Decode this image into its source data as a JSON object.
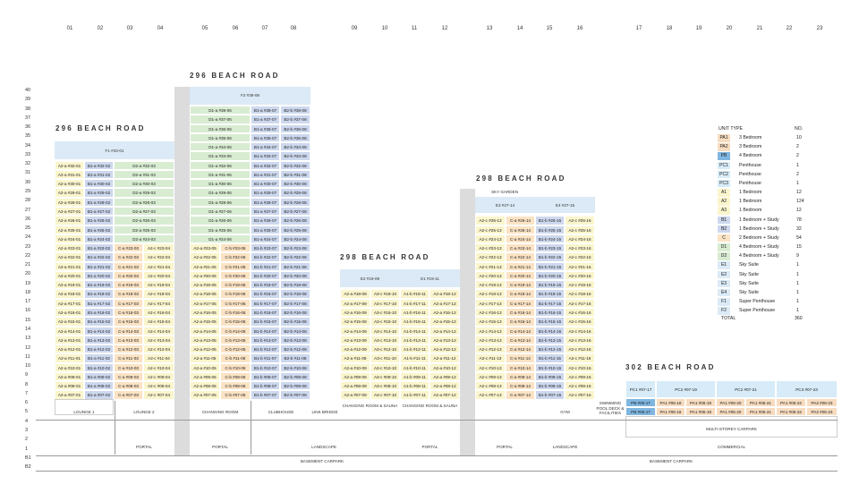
{
  "columns": [
    "01",
    "02",
    "03",
    "04",
    "05",
    "06",
    "07",
    "08",
    "09",
    "10",
    "11",
    "12",
    "13",
    "14",
    "15",
    "16",
    "17",
    "18",
    "19",
    "20",
    "21",
    "22",
    "23"
  ],
  "floors": [
    "40",
    "39",
    "38",
    "37",
    "36",
    "35",
    "34",
    "33",
    "32",
    "31",
    "30",
    "29",
    "28",
    "27",
    "26",
    "25",
    "24",
    "23",
    "22",
    "21",
    "20",
    "19",
    "18",
    "17",
    "16",
    "15",
    "14",
    "13",
    "12",
    "11",
    "10",
    "9",
    "8",
    "7",
    "6",
    "5",
    "4",
    "3",
    "2",
    "1",
    "B1",
    "B2"
  ],
  "buildings": [
    {
      "name": "296 BEACH ROAD",
      "id": "b296a"
    },
    {
      "name": "296 BEACH ROAD",
      "id": "b296b"
    },
    {
      "name": "298 BEACH ROAD",
      "id": "b298a"
    },
    {
      "name": "298 BEACH ROAD",
      "id": "b298b"
    },
    {
      "name": "302 BEACH ROAD",
      "id": "b302"
    }
  ],
  "top_units": {
    "f1": "F1 #33-01",
    "f2": "F2 #39-08",
    "e2": "E2 #19-09",
    "e1": "E1 #19-11",
    "e3": "E3 #27-14",
    "e4": "E4 #27-15",
    "sky_garden": "SKY GARDEN"
  },
  "facilities": {
    "lounge1": "LOUNGE 1",
    "lounge2": "LOUNGE 2",
    "changing_room": "CHANGING ROOM",
    "clubhouse": "CLUBHOUSE",
    "link_bridge": "LINK BRIDGE",
    "changing_sauna_1": "CHANGING ROOM & SAUNA",
    "changing_sauna_2": "CHANGING ROOM & SAUNA",
    "gym": "GYM",
    "swimming": "SWIMMING POOL DECK & FACILITIES",
    "multi_carpark": "MULTI-STOREY CARPARK",
    "commercial": "COMMERCIAL"
  },
  "ground": {
    "portal1": "PORTAL",
    "portal2": "PORTAL",
    "landscape1": "LANDSCAPE",
    "portal3": "PORTAL",
    "portal4": "PORTAL",
    "landscape2": "LANDSCAPE",
    "basement1": "BASEMENT CARPARK",
    "basement2": "BASEMENT CARPARK"
  },
  "b302_units": {
    "row1": [
      "PC1 #07-17",
      "PC2 #07-19",
      "PC2 #07-21",
      "PC3 #07-23"
    ],
    "row2": [
      "PB #06-17",
      "PA1 #06-18",
      "PA1 #06-19",
      "PA1 #06-20",
      "PA1 #06-21",
      "PA1 #06-22",
      "PA2 #06-23"
    ],
    "row3": [
      "PB #05-17",
      "PA1 #05-18",
      "PA1 #05-19",
      "PA1 #05-20",
      "PA1 #05-21",
      "PA1 #05-22",
      "PA2 #05-23"
    ]
  },
  "legend": {
    "header_type": "UNIT TYPE",
    "header_no": "NO.",
    "rows": [
      {
        "code": "PA1",
        "desc": "3 Bedroom",
        "no": "10",
        "color": "#f7dcc0"
      },
      {
        "code": "PA2",
        "desc": "3 Bedroom",
        "no": "2",
        "color": "#f7dcc0"
      },
      {
        "code": "PB",
        "desc": "4 Bedroom",
        "no": "2",
        "color": "#7fb6e0"
      },
      {
        "code": "PC1",
        "desc": "Penthouse",
        "no": "1",
        "color": "#d7ebf8"
      },
      {
        "code": "PC2",
        "desc": "Penthouse",
        "no": "2",
        "color": "#d7ebf8"
      },
      {
        "code": "PC3",
        "desc": "Penthouse",
        "no": "1",
        "color": "#d7ebf8"
      },
      {
        "code": "A1",
        "desc": "1 Bedroom",
        "no": "12",
        "color": "#faf5cc"
      },
      {
        "code": "A2",
        "desc": "1 Bedroom",
        "no": "124",
        "color": "#faf5cc"
      },
      {
        "code": "A3",
        "desc": "1 Bedroom",
        "no": "12",
        "color": "#faf5cc"
      },
      {
        "code": "B1",
        "desc": "1 Bedroom + Study",
        "no": "78",
        "color": "#cdd8ee"
      },
      {
        "code": "B2",
        "desc": "1 Bedroom + Study",
        "no": "32",
        "color": "#cdd8ee"
      },
      {
        "code": "C",
        "desc": "2 Bedroom + Study",
        "no": "54",
        "color": "#fbe3c4"
      },
      {
        "code": "D1",
        "desc": "4 Bedroom + Study",
        "no": "15",
        "color": "#d8ecd2"
      },
      {
        "code": "D2",
        "desc": "4 Bedroom + Study",
        "no": "9",
        "color": "#d8ecd2"
      },
      {
        "code": "E1",
        "desc": "Sky Suite",
        "no": "1",
        "color": "#dbeaf6"
      },
      {
        "code": "E2",
        "desc": "Sky Suite",
        "no": "1",
        "color": "#dbeaf6"
      },
      {
        "code": "E3",
        "desc": "Sky Suite",
        "no": "1",
        "color": "#dbeaf6"
      },
      {
        "code": "E4",
        "desc": "Sky Suite",
        "no": "1",
        "color": "#dbeaf6"
      },
      {
        "code": "F1",
        "desc": "Super Penthouse",
        "no": "1",
        "color": "#dbeaf6"
      },
      {
        "code": "F2",
        "desc": "Super Penthouse",
        "no": "1",
        "color": "#dbeaf6"
      }
    ],
    "total_label": "TOTAL",
    "total_value": "360"
  },
  "colors": {
    "A": "#faf5cc",
    "B": "#cdd8ee",
    "C": "#fbe3c4",
    "D": "#d8ecd2",
    "E": "#dbeaf6",
    "PA": "#f7dcc0",
    "PB": "#7fb6e0",
    "PC": "#d7ebf8",
    "core": "#dcdcdc"
  },
  "unit_columns": {
    "b296a": [
      {
        "type": "A2-a",
        "col": "01",
        "top": 32,
        "bottom": 7,
        "special": {
          "20": "A2-b",
          "19": "A2-b",
          "18": "A2-a",
          "17": "A2-a"
        },
        "prefix": "A2"
      },
      {
        "type": "B1",
        "col": "02",
        "top": 32,
        "bottom": 7,
        "prefix": "B1"
      },
      {
        "type": "C",
        "col": "03",
        "top": 23,
        "bottom": 7,
        "prefix": "C"
      },
      {
        "type": "A2-c",
        "col": "04",
        "top": 23,
        "bottom": 7,
        "prefix": "A2"
      }
    ]
  }
}
